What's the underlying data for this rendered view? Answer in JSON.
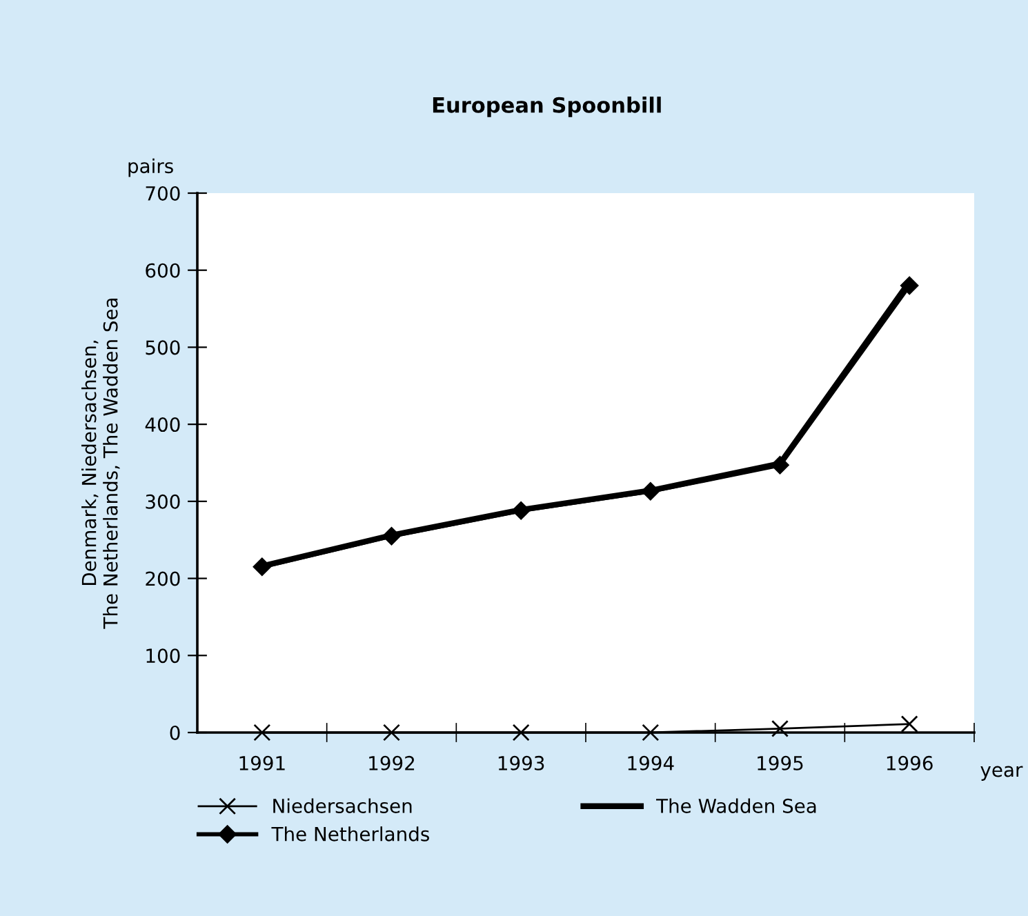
{
  "chart_data": {
    "type": "line",
    "title": "European Spoonbill",
    "ylabel": "Denmark, Niedersachsen,\nThe Netherlands, The Wadden Sea",
    "xlabel": "year",
    "annotations": [
      "pairs"
    ],
    "categories": [
      "1991",
      "1992",
      "1993",
      "1994",
      "1995",
      "1996"
    ],
    "series": [
      {
        "name": "Niedersachsen",
        "color": "#000000",
        "marker": "cross",
        "values": [
          0,
          0,
          0,
          0,
          5,
          11
        ]
      },
      {
        "name": "The Netherlands",
        "color": "#000000",
        "marker": "diamond",
        "values": [
          215,
          255,
          288,
          313,
          347,
          580
        ]
      },
      {
        "name": "The Wadden Sea",
        "color": "#000000",
        "marker": "none",
        "values": [
          216,
          256,
          289,
          314,
          349,
          585
        ]
      }
    ],
    "ylim": [
      0,
      700
    ],
    "yticks": [
      0,
      100,
      200,
      300,
      400,
      500,
      600,
      700
    ],
    "grid": false,
    "legend": "bottom"
  }
}
